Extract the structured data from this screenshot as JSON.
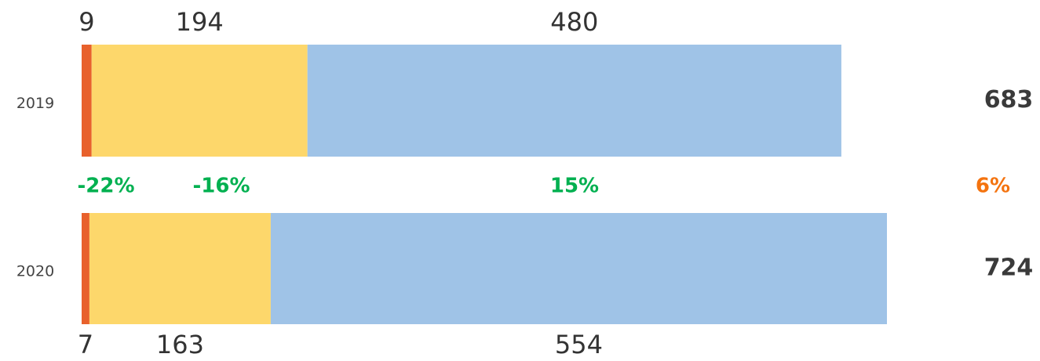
{
  "chart_data": {
    "type": "stacked-bar-horizontal",
    "categories": [
      "2019",
      "2020"
    ],
    "series": [
      {
        "color": "#e8612c",
        "values": [
          9,
          7
        ]
      },
      {
        "color": "#fdd76b",
        "values": [
          194,
          163
        ]
      },
      {
        "color": "#9fc3e7",
        "values": [
          480,
          554
        ]
      }
    ],
    "totals": [
      683,
      724
    ],
    "xlim": [
      0,
      724
    ],
    "annotations": [
      {
        "text": "-22%",
        "color": "#00b050"
      },
      {
        "text": "-16%",
        "color": "#00b050"
      },
      {
        "text": "15%",
        "color": "#00b050"
      },
      {
        "text": "6%",
        "color": "#f4730f"
      }
    ]
  }
}
